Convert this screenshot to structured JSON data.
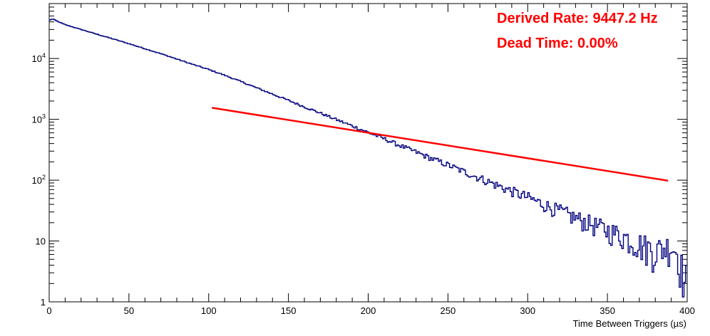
{
  "chart_data": {
    "type": "line",
    "title": "",
    "xlabel": "Time Between Triggers (µs)",
    "ylabel": "",
    "xlim": [
      0,
      400
    ],
    "ylim": [
      1,
      80000
    ],
    "y_scale": "log",
    "grid": false,
    "annotations": [
      {
        "text": "Derived Rate: 9447.2 Hz",
        "color": "#ff0000"
      },
      {
        "text": "Dead Time: 0.00%",
        "color": "#ff0000"
      }
    ],
    "x_ticks": [
      "0",
      "50",
      "100",
      "150",
      "200",
      "250",
      "300",
      "350",
      "400"
    ],
    "y_ticks": [
      {
        "value": 1,
        "base": "1",
        "exp": ""
      },
      {
        "value": 10,
        "base": "10",
        "exp": ""
      },
      {
        "value": 100,
        "base": "10",
        "exp": "2"
      },
      {
        "value": 1000,
        "base": "10",
        "exp": "3"
      },
      {
        "value": 10000,
        "base": "10",
        "exp": "4"
      }
    ],
    "series": [
      {
        "kind": "histogram",
        "color": "#000080",
        "x": [
          0,
          2,
          5,
          10,
          20,
          30,
          40,
          50,
          60,
          70,
          80,
          90,
          100,
          110,
          120,
          130,
          140,
          150,
          160,
          170,
          180,
          190,
          200,
          210,
          220,
          230,
          240,
          250,
          260,
          270,
          280,
          290,
          300,
          310,
          320,
          330,
          340,
          350,
          360,
          370,
          380,
          390,
          395,
          398,
          400
        ],
        "y": [
          42000,
          45000,
          41000,
          36000,
          30000,
          25000,
          21000,
          17500,
          14500,
          12000,
          9800,
          8000,
          6600,
          5300,
          4200,
          3300,
          2600,
          2050,
          1600,
          1270,
          990,
          780,
          610,
          480,
          370,
          290,
          225,
          178,
          138,
          108,
          84,
          66,
          52,
          40,
          31,
          24,
          19,
          15,
          12,
          9,
          7,
          8.5,
          6,
          2,
          2
        ]
      },
      {
        "kind": "line",
        "color": "#ff0000",
        "x": [
          102,
          388
        ],
        "y": [
          1550,
          98
        ]
      }
    ]
  }
}
